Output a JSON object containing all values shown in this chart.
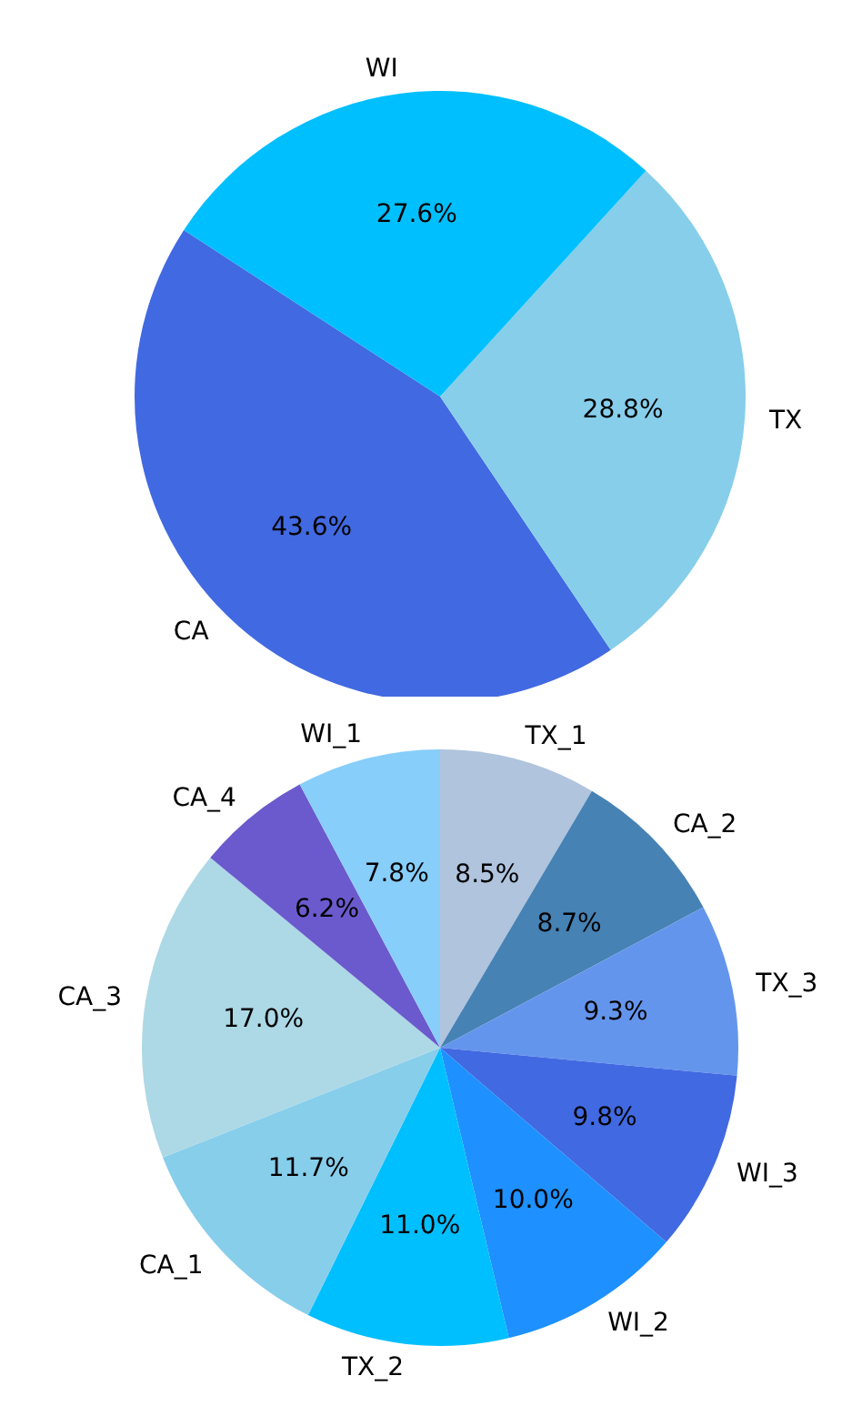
{
  "chart_data": [
    {
      "type": "pie",
      "categories": [
        "CA",
        "TX",
        "WI"
      ],
      "values": [
        43.6,
        28.8,
        27.6
      ],
      "colors": [
        "#4169e1",
        "#87ceeb",
        "#00bfff"
      ],
      "value_labels": [
        "43.6%",
        "28.8%",
        "27.6%"
      ]
    },
    {
      "type": "pie",
      "categories": [
        "TX_1",
        "CA_2",
        "TX_3",
        "WI_3",
        "WI_2",
        "TX_2",
        "CA_1",
        "CA_3",
        "CA_4",
        "WI_1"
      ],
      "values": [
        8.5,
        8.7,
        9.3,
        9.8,
        10.0,
        11.0,
        11.7,
        17.0,
        6.2,
        7.8
      ],
      "colors": [
        "#b0c4de",
        "#4682b4",
        "#6495ed",
        "#4169e1",
        "#1e90ff",
        "#00bfff",
        "#87ceeb",
        "#add8e6",
        "#6a5acd",
        "#87cefa"
      ],
      "value_labels": [
        "8.5%",
        "8.7%",
        "9.3%",
        "9.8%",
        "10.0%",
        "11.0%",
        "11.7%",
        "17.0%",
        "6.2%",
        "7.8%"
      ]
    }
  ]
}
